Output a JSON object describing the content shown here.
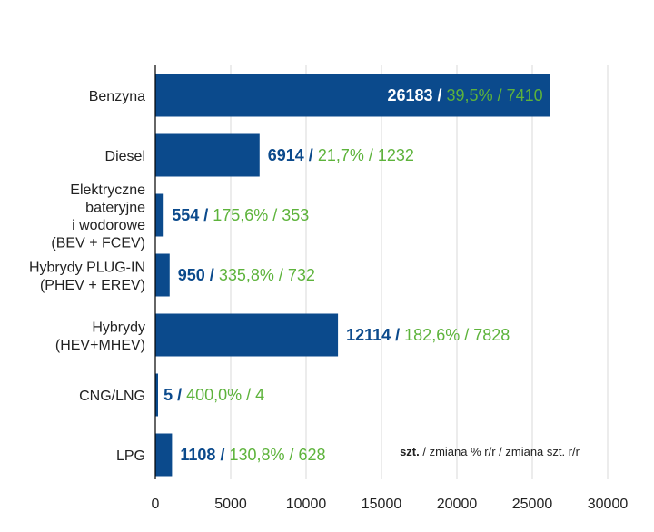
{
  "chart_data": {
    "type": "bar",
    "orientation": "horizontal",
    "categories": [
      [
        "Benzyna"
      ],
      [
        "Diesel"
      ],
      [
        "Elektryczne",
        "bateryjne",
        "i wodorowe",
        "(BEV + FCEV)"
      ],
      [
        "Hybrydy PLUG-IN",
        "(PHEV + EREV)"
      ],
      [
        "Hybrydy",
        "(HEV+MHEV)"
      ],
      [
        "CNG/LNG"
      ],
      [
        "LPG"
      ]
    ],
    "values": [
      26183,
      6914,
      554,
      950,
      12114,
      5,
      1108
    ],
    "change_pct": [
      "39,5%",
      "21,7%",
      "175,6%",
      "335,8%",
      "182,6%",
      "400,0%",
      "130,8%"
    ],
    "change_units": [
      "7410",
      "1232",
      "353",
      "732",
      "7828",
      "4",
      "628"
    ],
    "xlim": [
      0,
      30000
    ],
    "xticks": [
      "0",
      "5000",
      "10000",
      "15000",
      "20000",
      "25000",
      "30000"
    ],
    "grid": true,
    "legend": {
      "bold": "szt.",
      "rest": " / zmiana % r/r / zmiana szt. r/r",
      "position": "bottom-right"
    },
    "colors": {
      "bar": "#0b4a8c",
      "value": "#0b4a8c",
      "change": "#5db33b",
      "value_inside_bar": "#ffffff",
      "grid": "#d9d9d9",
      "axis": "#000000"
    }
  }
}
